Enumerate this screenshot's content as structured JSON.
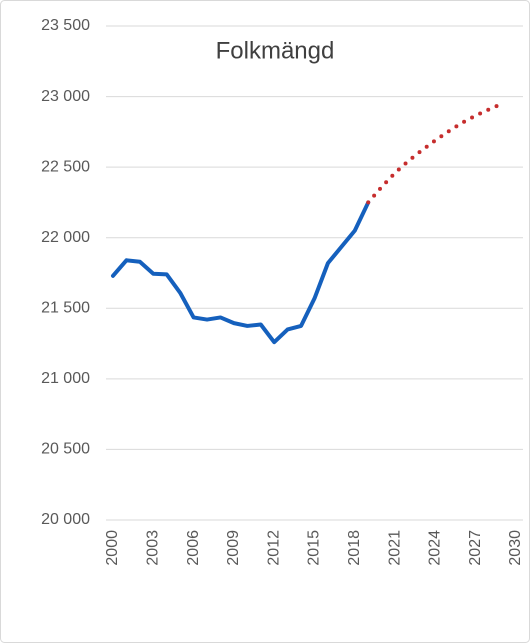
{
  "chart_data": {
    "type": "line",
    "title": "Folkmängd",
    "x": [
      2000,
      2001,
      2002,
      2003,
      2004,
      2005,
      2006,
      2007,
      2008,
      2009,
      2010,
      2011,
      2012,
      2013,
      2014,
      2015,
      2016,
      2017,
      2018,
      2019,
      2020,
      2021,
      2022,
      2023,
      2024,
      2025,
      2026,
      2027,
      2028,
      2029
    ],
    "series": [
      {
        "color": "#1560bd",
        "style": "solid",
        "values": [
          21730,
          21840,
          21830,
          21745,
          21740,
          21610,
          21435,
          21420,
          21435,
          21395,
          21375,
          21385,
          21260,
          21350,
          21375,
          21570,
          21820,
          21935,
          22050,
          22250,
          null,
          null,
          null,
          null,
          null,
          null,
          null,
          null,
          null,
          null
        ]
      },
      {
        "color": "#c62d2d",
        "style": "dotted",
        "values": [
          null,
          null,
          null,
          null,
          null,
          null,
          null,
          null,
          null,
          null,
          null,
          null,
          null,
          null,
          null,
          null,
          null,
          null,
          null,
          22250,
          22360,
          22460,
          22545,
          22620,
          22690,
          22755,
          22815,
          22865,
          22910,
          22950
        ]
      }
    ],
    "xlim": [
      2000,
      2030
    ],
    "xticks": [
      2000,
      2003,
      2006,
      2009,
      2012,
      2015,
      2018,
      2021,
      2024,
      2027,
      2030
    ],
    "ylim": [
      20000,
      23500
    ],
    "yticks": [
      {
        "value": 20000,
        "label": "20 000"
      },
      {
        "value": 20500,
        "label": "20 500"
      },
      {
        "value": 21000,
        "label": "21 000"
      },
      {
        "value": 21500,
        "label": "21 500"
      },
      {
        "value": 22000,
        "label": "22 000"
      },
      {
        "value": 22500,
        "label": "22 500"
      },
      {
        "value": 23000,
        "label": "23 000"
      },
      {
        "value": 23500,
        "label": "23 500"
      }
    ],
    "grid": true
  }
}
